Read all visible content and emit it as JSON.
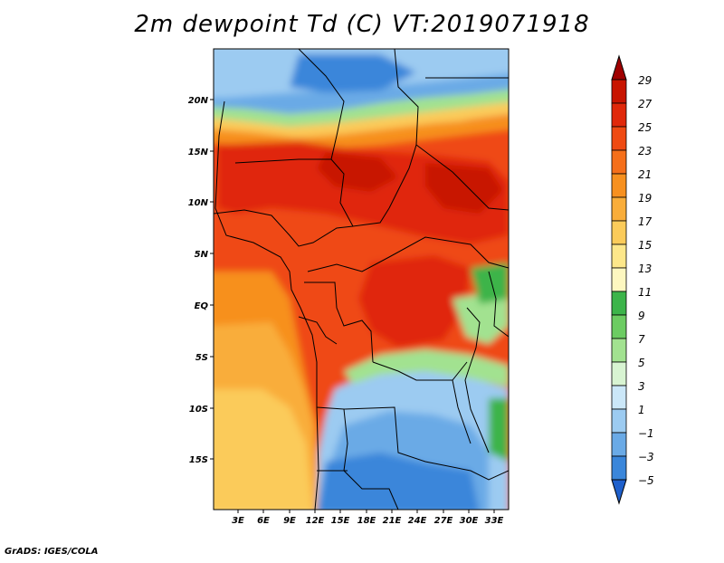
{
  "title": "2m dewpoint Td (C) VT:2019071918",
  "footer": "GrADS: IGES/COLA",
  "map": {
    "lat_labels": [
      "20N",
      "15N",
      "10N",
      "5N",
      "EQ",
      "5S",
      "10S",
      "15S"
    ],
    "lon_labels": [
      "3E",
      "6E",
      "9E",
      "12E",
      "15E",
      "18E",
      "21E",
      "24E",
      "27E",
      "30E",
      "33E"
    ]
  },
  "colorbar": {
    "levels": [
      "29",
      "27",
      "25",
      "23",
      "21",
      "19",
      "17",
      "15",
      "13",
      "11",
      "9",
      "7",
      "5",
      "3",
      "1",
      "−1",
      "−3",
      "−5"
    ],
    "colors": [
      "#a00000",
      "#c81400",
      "#e0280a",
      "#ef4a12",
      "#f56f1a",
      "#f7901f",
      "#f9ad3a",
      "#fbcb5a",
      "#fde78a",
      "#fdf7c0",
      "#3cb44a",
      "#6ccc62",
      "#a2e290",
      "#d8f4d2",
      "#cbe7f8",
      "#9ccbf1",
      "#6aaae6",
      "#3a86da",
      "#1f60cc"
    ]
  }
}
